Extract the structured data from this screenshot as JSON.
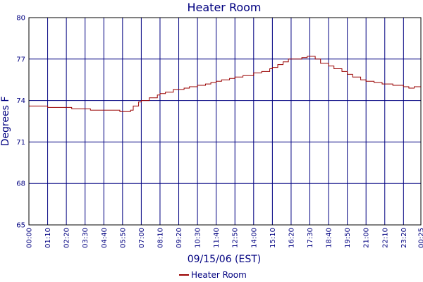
{
  "chart_data": {
    "type": "line",
    "title": "Heater Room",
    "xlabel": "09/15/06 (EST)",
    "ylabel": "Degrees F",
    "ylim": [
      65,
      80
    ],
    "yticks": [
      "65",
      "68",
      "71",
      "74",
      "77",
      "80"
    ],
    "xlim_minutes": [
      0,
      1465
    ],
    "xticks": [
      "00:00",
      "01:10",
      "02:20",
      "03:30",
      "04:40",
      "05:50",
      "07:00",
      "08:10",
      "09:20",
      "10:30",
      "11:40",
      "12:50",
      "14:00",
      "15:10",
      "16:20",
      "17:30",
      "18:40",
      "19:50",
      "21:00",
      "22:10",
      "23:20",
      "00:25"
    ],
    "grid": true,
    "legend": "bottom-center",
    "colors": {
      "line": "#990000",
      "grid": "#000080",
      "text": "#000080",
      "axis": "#000000"
    },
    "series": [
      {
        "name": "Heater Room",
        "x": [
          "00:00",
          "00:30",
          "01:00",
          "01:10",
          "01:30",
          "02:00",
          "02:20",
          "02:40",
          "03:00",
          "03:20",
          "03:30",
          "03:50",
          "04:10",
          "04:40",
          "05:00",
          "05:20",
          "05:40",
          "05:50",
          "06:10",
          "06:20",
          "06:30",
          "06:50",
          "07:00",
          "07:30",
          "08:00",
          "08:10",
          "08:30",
          "09:00",
          "09:20",
          "09:40",
          "10:00",
          "10:30",
          "11:00",
          "11:20",
          "11:40",
          "12:00",
          "12:30",
          "12:50",
          "13:20",
          "14:00",
          "14:30",
          "15:00",
          "15:10",
          "15:30",
          "15:50",
          "16:10",
          "16:20",
          "16:40",
          "17:00",
          "17:20",
          "17:30",
          "17:50",
          "18:10",
          "18:40",
          "19:00",
          "19:30",
          "19:50",
          "20:10",
          "20:40",
          "21:00",
          "21:30",
          "22:00",
          "22:10",
          "22:40",
          "23:00",
          "23:20",
          "23:40",
          "00:00",
          "00:25"
        ],
        "y": [
          73.6,
          73.6,
          73.6,
          73.5,
          73.5,
          73.5,
          73.5,
          73.4,
          73.4,
          73.4,
          73.4,
          73.3,
          73.3,
          73.3,
          73.3,
          73.3,
          73.2,
          73.2,
          73.2,
          73.3,
          73.6,
          73.9,
          74.0,
          74.2,
          74.4,
          74.5,
          74.6,
          74.8,
          74.8,
          74.9,
          75.0,
          75.1,
          75.2,
          75.3,
          75.4,
          75.5,
          75.6,
          75.7,
          75.8,
          76.0,
          76.1,
          76.3,
          76.4,
          76.6,
          76.8,
          77.0,
          77.0,
          77.0,
          77.1,
          77.2,
          77.2,
          77.0,
          76.7,
          76.5,
          76.3,
          76.1,
          75.9,
          75.7,
          75.5,
          75.4,
          75.3,
          75.2,
          75.2,
          75.1,
          75.1,
          75.0,
          74.9,
          75.0,
          75.0
        ]
      }
    ]
  }
}
